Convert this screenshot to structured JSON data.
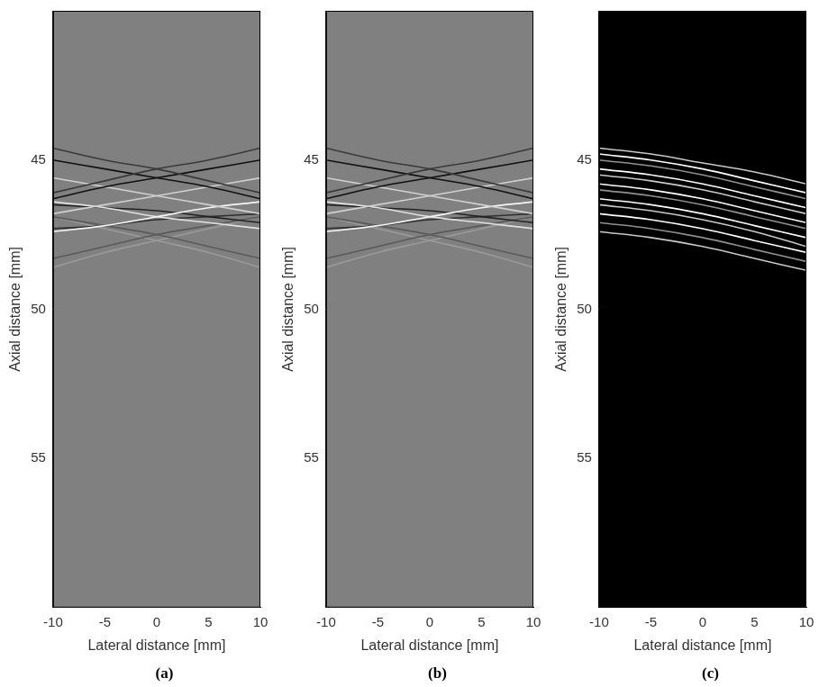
{
  "chart_data": [
    {
      "type": "line",
      "label": "(a)",
      "x_label": "Lateral distance [mm]",
      "y_label": "Axial distance [mm]",
      "xlim": [
        -10,
        10
      ],
      "xticks": [
        -10,
        -5,
        0,
        5,
        10
      ],
      "ylim": [
        60,
        40
      ],
      "yticks": [
        45,
        50,
        55
      ],
      "grid": false,
      "x": [
        -10,
        -5,
        0,
        5,
        10
      ],
      "series": [
        {
          "color": "#3a3a3a",
          "values": [
            44.6,
            45.0,
            45.3,
            45.7,
            46.1
          ]
        },
        {
          "color": "#3a3a3a",
          "values": [
            46.1,
            45.7,
            45.3,
            45.0,
            44.6
          ]
        },
        {
          "color": "#111111",
          "values": [
            45.0,
            45.3,
            45.6,
            45.9,
            46.3
          ]
        },
        {
          "color": "#111111",
          "values": [
            46.3,
            45.9,
            45.6,
            45.3,
            45.0
          ]
        },
        {
          "color": "#d0d0d0",
          "values": [
            45.6,
            45.9,
            46.2,
            46.5,
            46.8
          ]
        },
        {
          "color": "#d0d0d0",
          "values": [
            46.8,
            46.5,
            46.2,
            45.9,
            45.6
          ]
        },
        {
          "color": "#f5f5f5",
          "values": [
            47.4,
            47.2,
            46.9,
            46.6,
            46.4
          ]
        },
        {
          "color": "#e0e0e0",
          "values": [
            46.4,
            46.6,
            46.9,
            47.1,
            47.3
          ]
        },
        {
          "color": "#222222",
          "values": [
            46.5,
            46.6,
            46.7,
            46.9,
            47.1
          ]
        },
        {
          "color": "#303030",
          "values": [
            47.3,
            47.2,
            47.0,
            46.9,
            46.8
          ]
        },
        {
          "color": "#5a5a5a",
          "values": [
            48.3,
            47.9,
            47.5,
            47.2,
            46.9
          ]
        },
        {
          "color": "#5a5a5a",
          "values": [
            46.9,
            47.2,
            47.5,
            47.9,
            48.3
          ]
        },
        {
          "color": "#9a9a9a",
          "values": [
            48.6,
            48.1,
            47.7,
            47.3,
            46.9
          ]
        },
        {
          "color": "#9a9a9a",
          "values": [
            46.9,
            47.3,
            47.7,
            48.1,
            48.6
          ]
        }
      ]
    },
    {
      "type": "line",
      "label": "(b)",
      "x_label": "Lateral distance [mm]",
      "y_label": "Axial distance [mm]",
      "xlim": [
        -10,
        10
      ],
      "xticks": [
        -10,
        -5,
        0,
        5,
        10
      ],
      "ylim": [
        60,
        40
      ],
      "yticks": [
        45,
        50,
        55
      ],
      "grid": false,
      "x": [
        -10,
        -5,
        0,
        5,
        10
      ],
      "series": [
        {
          "color": "#3a3a3a",
          "values": [
            44.6,
            45.0,
            45.3,
            45.7,
            46.1
          ]
        },
        {
          "color": "#3a3a3a",
          "values": [
            46.1,
            45.7,
            45.3,
            45.0,
            44.6
          ]
        },
        {
          "color": "#111111",
          "values": [
            45.0,
            45.3,
            45.6,
            45.9,
            46.3
          ]
        },
        {
          "color": "#111111",
          "values": [
            46.3,
            45.9,
            45.6,
            45.3,
            45.0
          ]
        },
        {
          "color": "#d0d0d0",
          "values": [
            45.6,
            45.9,
            46.2,
            46.5,
            46.8
          ]
        },
        {
          "color": "#d0d0d0",
          "values": [
            46.8,
            46.5,
            46.2,
            45.9,
            45.6
          ]
        },
        {
          "color": "#f5f5f5",
          "values": [
            47.4,
            47.2,
            46.9,
            46.6,
            46.4
          ]
        },
        {
          "color": "#e0e0e0",
          "values": [
            46.4,
            46.6,
            46.9,
            47.1,
            47.3
          ]
        },
        {
          "color": "#222222",
          "values": [
            46.5,
            46.6,
            46.7,
            46.9,
            47.1
          ]
        },
        {
          "color": "#303030",
          "values": [
            47.3,
            47.2,
            47.0,
            46.9,
            46.8
          ]
        },
        {
          "color": "#5a5a5a",
          "values": [
            48.3,
            47.9,
            47.5,
            47.2,
            46.9
          ]
        },
        {
          "color": "#5a5a5a",
          "values": [
            46.9,
            47.2,
            47.5,
            47.9,
            48.3
          ]
        },
        {
          "color": "#9a9a9a",
          "values": [
            48.6,
            48.1,
            47.7,
            47.3,
            46.9
          ]
        },
        {
          "color": "#9a9a9a",
          "values": [
            46.9,
            47.3,
            47.7,
            48.1,
            48.6
          ]
        }
      ]
    },
    {
      "type": "line",
      "label": "(c)",
      "x_label": "Lateral distance [mm]",
      "y_label": "Axial distance [mm]",
      "xlim": [
        -10,
        10
      ],
      "xticks": [
        -10,
        -5,
        0,
        5,
        10
      ],
      "ylim": [
        60,
        40
      ],
      "yticks": [
        45,
        50,
        55
      ],
      "grid": false,
      "x": [
        -10,
        -5,
        0,
        5,
        10
      ],
      "series": [
        {
          "color": "#c8c8c8",
          "values": [
            44.6,
            44.8,
            45.1,
            45.4,
            45.8
          ]
        },
        {
          "color": "#ffffff",
          "values": [
            44.8,
            45.0,
            45.3,
            45.7,
            46.1
          ]
        },
        {
          "color": "#909090",
          "values": [
            45.0,
            45.2,
            45.5,
            45.9,
            46.3
          ]
        },
        {
          "color": "#ffffff",
          "values": [
            45.3,
            45.5,
            45.8,
            46.2,
            46.6
          ]
        },
        {
          "color": "#c8c8c8",
          "values": [
            45.5,
            45.7,
            46.0,
            46.4,
            46.8
          ]
        },
        {
          "color": "#ffffff",
          "values": [
            45.8,
            46.0,
            46.3,
            46.7,
            47.1
          ]
        },
        {
          "color": "#909090",
          "values": [
            46.0,
            46.2,
            46.5,
            46.9,
            47.3
          ]
        },
        {
          "color": "#ffffff",
          "values": [
            46.3,
            46.5,
            46.8,
            47.2,
            47.6
          ]
        },
        {
          "color": "#c8c8c8",
          "values": [
            46.5,
            46.7,
            47.0,
            47.4,
            47.9
          ]
        },
        {
          "color": "#ffffff",
          "values": [
            46.8,
            47.0,
            47.3,
            47.7,
            48.1
          ]
        },
        {
          "color": "#909090",
          "values": [
            47.1,
            47.3,
            47.6,
            48.0,
            48.4
          ]
        },
        {
          "color": "#c8c8c8",
          "values": [
            47.4,
            47.6,
            47.9,
            48.3,
            48.7
          ]
        }
      ]
    }
  ]
}
